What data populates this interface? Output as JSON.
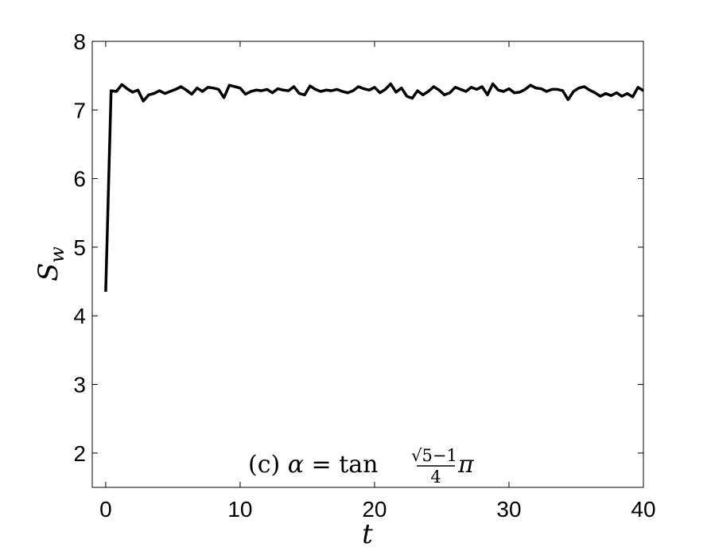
{
  "chart_data": {
    "type": "line",
    "xlabel": "t",
    "ylabel": "S",
    "ylabel_sub": "w",
    "xlim": [
      -1,
      40
    ],
    "ylim": [
      1.5,
      8
    ],
    "xticks": [
      0,
      10,
      20,
      30,
      40
    ],
    "yticks": [
      2,
      3,
      4,
      5,
      6,
      7,
      8
    ],
    "grid": false,
    "annotation": {
      "prefix": "(c) ",
      "alpha": "α",
      "equals": " = ",
      "func": "tan ",
      "sqrt": "√",
      "num": "5−1",
      "den": "4",
      "pi": "π"
    },
    "series": [
      {
        "color": "#000000",
        "x": [
          0,
          0.4,
          0.8,
          1.2,
          1.6,
          2.0,
          2.4,
          2.8,
          3.2,
          3.6,
          4.0,
          4.4,
          4.8,
          5.2,
          5.6,
          6.0,
          6.4,
          6.8,
          7.2,
          7.6,
          8.0,
          8.4,
          8.8,
          9.2,
          9.6,
          10.0,
          10.4,
          10.8,
          11.2,
          11.6,
          12.0,
          12.4,
          12.8,
          13.2,
          13.6,
          14.0,
          14.4,
          14.8,
          15.2,
          15.6,
          16.0,
          16.4,
          16.8,
          17.2,
          17.6,
          18.0,
          18.4,
          18.8,
          19.2,
          19.6,
          20.0,
          20.4,
          20.8,
          21.2,
          21.6,
          22.0,
          22.4,
          22.8,
          23.2,
          23.6,
          24.0,
          24.4,
          24.8,
          25.2,
          25.6,
          26.0,
          26.4,
          26.8,
          27.2,
          27.6,
          28.0,
          28.4,
          28.8,
          29.2,
          29.6,
          30.0,
          30.4,
          30.8,
          31.2,
          31.6,
          32.0,
          32.4,
          32.8,
          33.2,
          33.6,
          34.0,
          34.4,
          34.8,
          35.2,
          35.6,
          36.0,
          36.4,
          36.8,
          37.2,
          37.6,
          38.0,
          38.4,
          38.8,
          39.2,
          39.6,
          40.0
        ],
        "y": [
          4.35,
          7.28,
          7.27,
          7.37,
          7.31,
          7.26,
          7.29,
          7.13,
          7.22,
          7.24,
          7.28,
          7.24,
          7.27,
          7.3,
          7.34,
          7.29,
          7.23,
          7.32,
          7.27,
          7.33,
          7.32,
          7.3,
          7.18,
          7.36,
          7.34,
          7.32,
          7.23,
          7.27,
          7.29,
          7.28,
          7.3,
          7.25,
          7.31,
          7.29,
          7.28,
          7.34,
          7.24,
          7.22,
          7.35,
          7.3,
          7.27,
          7.29,
          7.28,
          7.3,
          7.27,
          7.25,
          7.28,
          7.34,
          7.31,
          7.29,
          7.33,
          7.25,
          7.3,
          7.38,
          7.26,
          7.32,
          7.2,
          7.17,
          7.28,
          7.22,
          7.27,
          7.34,
          7.29,
          7.22,
          7.25,
          7.33,
          7.3,
          7.27,
          7.33,
          7.3,
          7.34,
          7.22,
          7.38,
          7.29,
          7.27,
          7.31,
          7.25,
          7.26,
          7.3,
          7.36,
          7.32,
          7.31,
          7.27,
          7.3,
          7.3,
          7.28,
          7.15,
          7.27,
          7.32,
          7.34,
          7.29,
          7.25,
          7.2,
          7.24,
          7.21,
          7.25,
          7.2,
          7.24,
          7.19,
          7.33,
          7.28
        ]
      }
    ]
  }
}
